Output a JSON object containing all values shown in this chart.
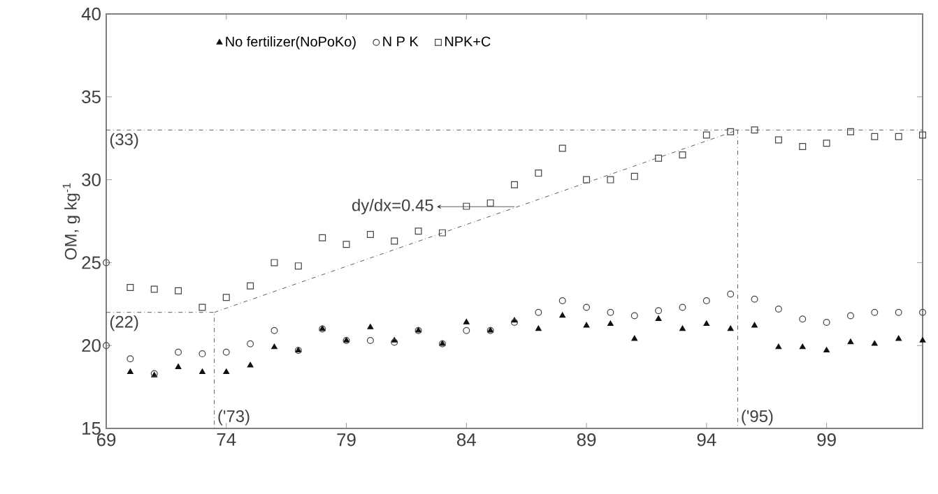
{
  "chart_data": {
    "type": "scatter",
    "ylabel": "OM, g kg$^{-1}$",
    "xlim": [
      69,
      103
    ],
    "ylim": [
      15,
      40
    ],
    "xticks": [
      69,
      74,
      79,
      84,
      89,
      94,
      99
    ],
    "yticks": [
      15,
      20,
      25,
      30,
      35,
      40
    ],
    "legend": "top left",
    "grid": false,
    "series": [
      {
        "name": "No fertilizer(NoPoKo)",
        "color": "#111111",
        "marker": "triangle",
        "x": [
          70,
          71,
          72,
          73,
          74,
          75,
          76,
          77,
          78,
          79,
          80,
          81,
          82,
          83,
          84,
          85,
          86,
          87,
          88,
          89,
          90,
          91,
          92,
          93,
          94,
          95,
          96,
          97,
          98,
          99,
          100,
          101,
          102,
          103
        ],
        "values": [
          18.4,
          18.2,
          18.7,
          18.4,
          18.4,
          18.8,
          19.9,
          19.7,
          21.0,
          20.3,
          21.1,
          20.3,
          20.9,
          20.1,
          21.4,
          20.9,
          21.5,
          21.0,
          21.8,
          21.2,
          21.3,
          20.4,
          21.6,
          21.0,
          21.3,
          21.0,
          21.2,
          19.9,
          19.9,
          19.7,
          20.2,
          20.1,
          20.4,
          20.3
        ]
      },
      {
        "name": "N P K",
        "color": "#444444",
        "marker": "circle",
        "x": [
          69,
          69,
          70,
          71,
          72,
          73,
          74,
          75,
          76,
          77,
          78,
          79,
          80,
          81,
          82,
          83,
          84,
          85,
          86,
          87,
          88,
          89,
          90,
          91,
          92,
          93,
          94,
          95,
          96,
          97,
          98,
          99,
          100,
          101,
          102,
          103
        ],
        "values": [
          20.0,
          25.0,
          19.2,
          18.3,
          19.6,
          19.5,
          19.6,
          20.1,
          20.9,
          19.7,
          21.0,
          20.3,
          20.3,
          20.2,
          20.9,
          20.1,
          20.9,
          20.9,
          21.4,
          22.0,
          22.7,
          22.3,
          22.0,
          21.8,
          22.1,
          22.3,
          22.7,
          23.1,
          22.8,
          22.2,
          21.6,
          21.4,
          21.8,
          22.0,
          22.0,
          22.0
        ]
      },
      {
        "name": "NPK+C",
        "color": "#444444",
        "marker": "square",
        "x": [
          70,
          71,
          72,
          73,
          74,
          75,
          76,
          77,
          78,
          79,
          80,
          81,
          82,
          83,
          84,
          85,
          86,
          87,
          88,
          89,
          90,
          91,
          92,
          93,
          94,
          95,
          96,
          97,
          98,
          99,
          100,
          101,
          102,
          103
        ],
        "values": [
          23.5,
          23.4,
          23.3,
          22.3,
          22.9,
          23.6,
          25.0,
          24.8,
          26.5,
          26.1,
          26.7,
          26.3,
          26.9,
          26.8,
          28.4,
          28.6,
          29.7,
          30.4,
          31.9,
          30.0,
          30.0,
          30.2,
          31.3,
          31.5,
          32.7,
          32.9,
          33.0,
          32.4,
          32.0,
          32.2,
          32.9,
          32.6,
          32.6,
          32.7
        ]
      },
      {
        "type": "line",
        "color": "#333333",
        "line_style": "dashdot",
        "marker": "none",
        "x": [
          73.5,
          95.3
        ],
        "values": [
          22,
          33
        ]
      },
      {
        "type": "line",
        "color": "#333333",
        "line_style": "dashdot",
        "marker": "none",
        "x": [
          69,
          73.5,
          73.5
        ],
        "values": [
          22,
          22,
          15
        ]
      },
      {
        "type": "line",
        "color": "#333333",
        "line_style": "dashdot",
        "marker": "none",
        "x": [
          95.3,
          95.3
        ],
        "values": [
          33,
          15
        ]
      }
    ],
    "ref_lines": [
      {
        "axis": "y",
        "value": 33,
        "label": "(33)",
        "color": "#333333",
        "line_style": "dashdot"
      }
    ],
    "annotations": [
      {
        "text": "(22)",
        "x": 69,
        "y": 22
      },
      {
        "text": "('73)",
        "x": 73.5,
        "y": 15
      },
      {
        "text": "('95)",
        "x": 95.3,
        "y": 15
      },
      "dy/dx=0.45"
    ]
  }
}
